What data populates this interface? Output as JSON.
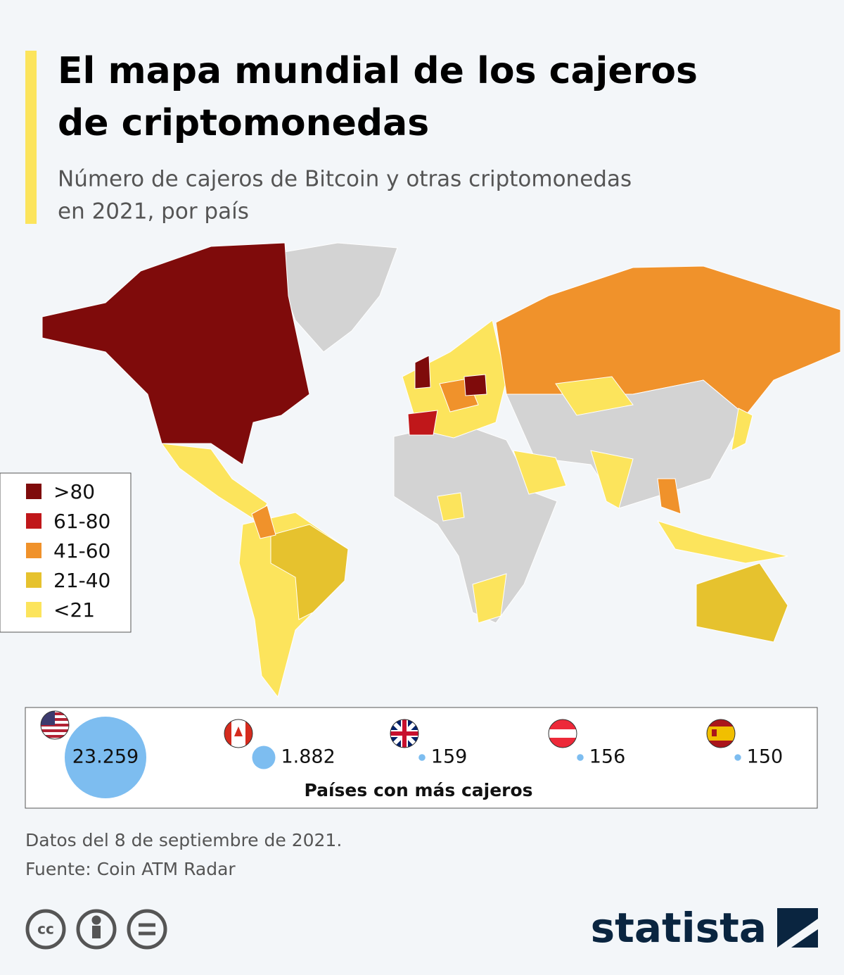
{
  "header": {
    "title_lines": [
      "El mapa mundial de los cajeros",
      "de criptomonedas"
    ],
    "subtitle_lines": [
      "Número de cajeros de Bitcoin y otras criptomonedas",
      "en 2021, por país"
    ]
  },
  "legend": {
    "items": [
      {
        "label": ">80",
        "color": "#7f0b0b"
      },
      {
        "label": "61-80",
        "color": "#c0171a"
      },
      {
        "label": "41-60",
        "color": "#f0922b"
      },
      {
        "label": "21-40",
        "color": "#e6c22e"
      },
      {
        "label": "<21",
        "color": "#fce45c"
      }
    ]
  },
  "top_countries": {
    "title": "Países con más cajeros",
    "values": [
      23259,
      1882,
      159,
      156,
      150
    ],
    "value_labels": [
      "23.259",
      "1.882",
      "159",
      "156",
      "150"
    ],
    "color": "#7dbdf0"
  },
  "footer": {
    "note": "Datos del 8 de septiembre de 2021.",
    "source": "Fuente: Coin ATM Radar",
    "brand": "statista"
  }
}
